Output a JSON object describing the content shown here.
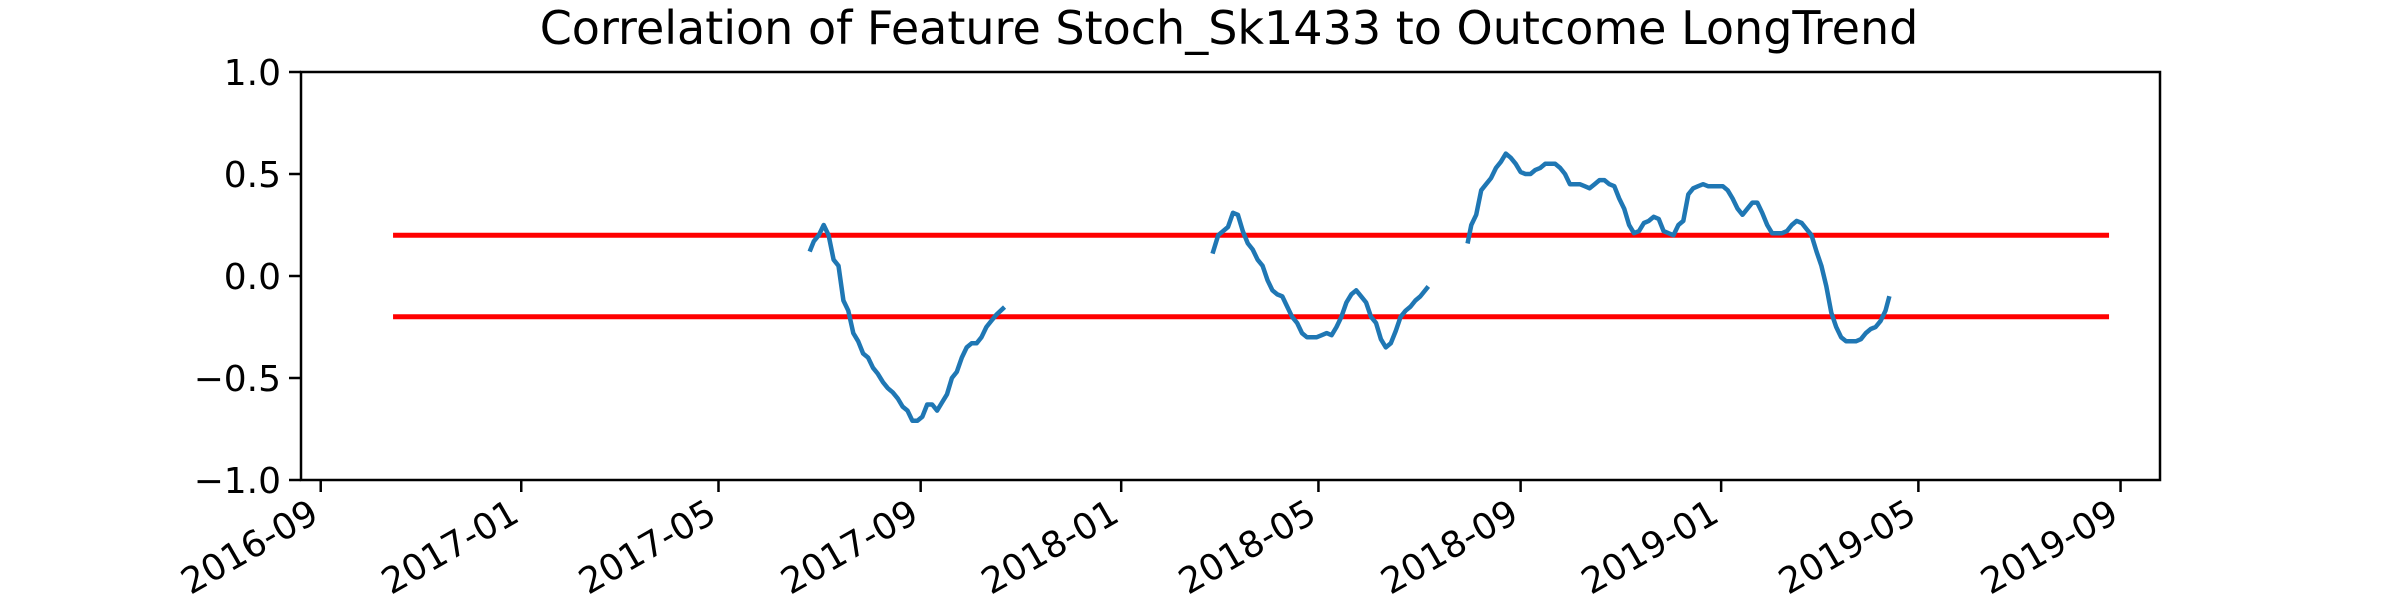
{
  "chart_data": {
    "type": "line",
    "title": "Correlation of Feature Stoch_Sk1433 to Outcome LongTrend",
    "xlabel": "",
    "ylabel": "",
    "xlim": [
      "2016-08-20",
      "2019-09-25"
    ],
    "ylim": [
      -1.0,
      1.0
    ],
    "grid": false,
    "x_ticks": [
      "2016-09",
      "2017-01",
      "2017-05",
      "2017-09",
      "2018-01",
      "2018-05",
      "2018-09",
      "2019-01",
      "2019-05",
      "2019-09"
    ],
    "y_ticks": [
      "1.0",
      "0.5",
      "0.0",
      "−0.5",
      "−1.0"
    ],
    "y_tick_values": [
      1.0,
      0.5,
      0.0,
      -0.5,
      -1.0
    ],
    "colors": {
      "series": "#1f77b4",
      "threshold": "#ff0000"
    },
    "thresholds": [
      {
        "x": [
          "2016-10-15",
          "2019-08-25"
        ],
        "y": 0.2
      },
      {
        "x": [
          "2016-10-15",
          "2019-08-25"
        ],
        "y": -0.2
      }
    ],
    "segments": [
      {
        "x": [
          "2017-06-26",
          "2017-06-28",
          "2017-07-01",
          "2017-07-04",
          "2017-07-07",
          "2017-07-10",
          "2017-07-13",
          "2017-07-16",
          "2017-07-19",
          "2017-07-22",
          "2017-07-25",
          "2017-07-28",
          "2017-07-31",
          "2017-08-03",
          "2017-08-06",
          "2017-08-09",
          "2017-08-12",
          "2017-08-15",
          "2017-08-18",
          "2017-08-21",
          "2017-08-24",
          "2017-08-27",
          "2017-08-30",
          "2017-09-02",
          "2017-09-05",
          "2017-09-08",
          "2017-09-11",
          "2017-09-14",
          "2017-09-17",
          "2017-09-20",
          "2017-09-23",
          "2017-09-26",
          "2017-09-29",
          "2017-10-02",
          "2017-10-05",
          "2017-10-08",
          "2017-10-11",
          "2017-10-14",
          "2017-10-17",
          "2017-10-21"
        ],
        "y": [
          0.13,
          0.17,
          0.2,
          0.25,
          0.2,
          0.08,
          0.05,
          -0.12,
          -0.17,
          -0.28,
          -0.32,
          -0.38,
          -0.4,
          -0.45,
          -0.48,
          -0.52,
          -0.55,
          -0.57,
          -0.6,
          -0.64,
          -0.66,
          -0.71,
          -0.71,
          -0.69,
          -0.63,
          -0.63,
          -0.66,
          -0.62,
          -0.58,
          -0.5,
          -0.47,
          -0.4,
          -0.35,
          -0.33,
          -0.33,
          -0.3,
          -0.25,
          -0.22,
          -0.19,
          -0.16
        ]
      },
      {
        "x": [
          "2018-02-26",
          "2018-03-01",
          "2018-03-04",
          "2018-03-07",
          "2018-03-10",
          "2018-03-13",
          "2018-03-16",
          "2018-03-19",
          "2018-03-22",
          "2018-03-25",
          "2018-03-28",
          "2018-03-31",
          "2018-04-03",
          "2018-04-06",
          "2018-04-09",
          "2018-04-12",
          "2018-04-15",
          "2018-04-18",
          "2018-04-21",
          "2018-04-24",
          "2018-04-27",
          "2018-04-30",
          "2018-05-03",
          "2018-05-06",
          "2018-05-09",
          "2018-05-12",
          "2018-05-15",
          "2018-05-18",
          "2018-05-21",
          "2018-05-24",
          "2018-05-27",
          "2018-05-30",
          "2018-06-02",
          "2018-06-05",
          "2018-06-08",
          "2018-06-11",
          "2018-06-14",
          "2018-06-17",
          "2018-06-20",
          "2018-06-23",
          "2018-06-26",
          "2018-06-29",
          "2018-07-02",
          "2018-07-06"
        ],
        "y": [
          0.12,
          0.2,
          0.22,
          0.24,
          0.31,
          0.3,
          0.22,
          0.16,
          0.13,
          0.08,
          0.05,
          -0.02,
          -0.07,
          -0.09,
          -0.1,
          -0.15,
          -0.2,
          -0.23,
          -0.28,
          -0.3,
          -0.3,
          -0.3,
          -0.29,
          -0.28,
          -0.29,
          -0.25,
          -0.2,
          -0.13,
          -0.09,
          -0.07,
          -0.1,
          -0.13,
          -0.2,
          -0.23,
          -0.31,
          -0.35,
          -0.33,
          -0.27,
          -0.2,
          -0.17,
          -0.15,
          -0.12,
          -0.1,
          -0.06
        ]
      },
      {
        "x": [
          "2018-07-31",
          "2018-08-02",
          "2018-08-05",
          "2018-08-08",
          "2018-08-11",
          "2018-08-14",
          "2018-08-17",
          "2018-08-20",
          "2018-08-23",
          "2018-08-26",
          "2018-08-29",
          "2018-09-01",
          "2018-09-04",
          "2018-09-07",
          "2018-09-10",
          "2018-09-13",
          "2018-09-16",
          "2018-09-19",
          "2018-09-22",
          "2018-09-25",
          "2018-09-28",
          "2018-10-01",
          "2018-10-04",
          "2018-10-07",
          "2018-10-10",
          "2018-10-13",
          "2018-10-16",
          "2018-10-19",
          "2018-10-22",
          "2018-10-25",
          "2018-10-28",
          "2018-10-31",
          "2018-11-03",
          "2018-11-06",
          "2018-11-09",
          "2018-11-12",
          "2018-11-15",
          "2018-11-18",
          "2018-11-21",
          "2018-11-24",
          "2018-11-27",
          "2018-11-30",
          "2018-12-03",
          "2018-12-06",
          "2018-12-09",
          "2018-12-12",
          "2018-12-15",
          "2018-12-18",
          "2018-12-21",
          "2018-12-24",
          "2018-12-27",
          "2018-12-30",
          "2019-01-02",
          "2019-01-05",
          "2019-01-08",
          "2019-01-11",
          "2019-01-14",
          "2019-01-17",
          "2019-01-20",
          "2019-01-23",
          "2019-01-26",
          "2019-01-29",
          "2019-02-01",
          "2019-02-04",
          "2019-02-07",
          "2019-02-10",
          "2019-02-13",
          "2019-02-16",
          "2019-02-19",
          "2019-02-22",
          "2019-02-25",
          "2019-02-28",
          "2019-03-03",
          "2019-03-06",
          "2019-03-09",
          "2019-03-12",
          "2019-03-15",
          "2019-03-18",
          "2019-03-21",
          "2019-03-24",
          "2019-03-27",
          "2019-03-30",
          "2019-04-02",
          "2019-04-05",
          "2019-04-08",
          "2019-04-11",
          "2019-04-13"
        ],
        "y": [
          0.17,
          0.25,
          0.3,
          0.42,
          0.45,
          0.48,
          0.53,
          0.56,
          0.6,
          0.58,
          0.55,
          0.51,
          0.5,
          0.5,
          0.52,
          0.53,
          0.55,
          0.55,
          0.55,
          0.53,
          0.5,
          0.45,
          0.45,
          0.45,
          0.44,
          0.43,
          0.45,
          0.47,
          0.47,
          0.45,
          0.44,
          0.38,
          0.33,
          0.25,
          0.21,
          0.22,
          0.26,
          0.27,
          0.29,
          0.28,
          0.22,
          0.21,
          0.2,
          0.25,
          0.27,
          0.4,
          0.43,
          0.44,
          0.45,
          0.44,
          0.44,
          0.44,
          0.44,
          0.42,
          0.38,
          0.33,
          0.3,
          0.33,
          0.36,
          0.36,
          0.31,
          0.25,
          0.21,
          0.21,
          0.21,
          0.22,
          0.25,
          0.27,
          0.26,
          0.23,
          0.2,
          0.12,
          0.05,
          -0.05,
          -0.18,
          -0.25,
          -0.3,
          -0.32,
          -0.32,
          -0.32,
          -0.31,
          -0.28,
          -0.26,
          -0.25,
          -0.22,
          -0.17,
          -0.11
        ]
      }
    ]
  }
}
